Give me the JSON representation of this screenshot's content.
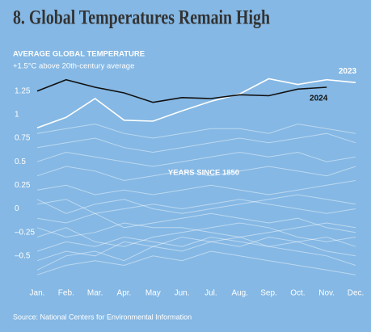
{
  "chart_data": {
    "type": "line",
    "title": "8. Global Temperatures Remain High",
    "subtitle": "AVERAGE GLOBAL TEMPERATURE",
    "y_label": "+1.5°C above 20th-century average",
    "annotation": "YEARS SINCE 1850",
    "source": "Source: National Centers for Environmental Information",
    "categories": [
      "Jan.",
      "Feb.",
      "Mar.",
      "Apr.",
      "May",
      "Jun.",
      "Jul.",
      "Aug.",
      "Sep.",
      "Oct.",
      "Nov.",
      "Dec."
    ],
    "ylim": [
      -0.75,
      1.5
    ],
    "yticks": [
      1.25,
      1,
      0.75,
      0.5,
      0.25,
      0,
      {
        "value": -0.25,
        "label": "–0.25"
      },
      {
        "value": -0.5,
        "label": "–0.5"
      }
    ],
    "grid": false,
    "series": [
      {
        "color": "#ffffff",
        "values": [
          -0.3,
          -0.2,
          -0.35,
          -0.4,
          -0.3,
          -0.25,
          -0.2,
          -0.15,
          -0.2,
          -0.3,
          -0.35,
          -0.3
        ]
      },
      {
        "color": "#ffffff",
        "values": [
          -0.55,
          -0.45,
          -0.5,
          -0.35,
          -0.4,
          -0.3,
          -0.35,
          -0.4,
          -0.3,
          -0.35,
          -0.45,
          -0.5
        ]
      },
      {
        "color": "#ffffff",
        "values": [
          -0.1,
          -0.15,
          -0.05,
          -0.2,
          -0.15,
          -0.1,
          -0.05,
          -0.1,
          -0.15,
          -0.1,
          -0.2,
          -0.25
        ]
      },
      {
        "color": "#ffffff",
        "values": [
          -0.65,
          -0.5,
          -0.45,
          -0.55,
          -0.4,
          -0.45,
          -0.35,
          -0.3,
          -0.4,
          -0.45,
          -0.5,
          -0.6
        ]
      },
      {
        "color": "#ffffff",
        "values": [
          0.05,
          0.1,
          -0.05,
          0.0,
          0.05,
          0.0,
          0.05,
          0.1,
          0.05,
          0.0,
          -0.05,
          0.0
        ]
      },
      {
        "color": "#ffffff",
        "values": [
          -0.2,
          -0.3,
          -0.25,
          -0.15,
          -0.2,
          -0.2,
          -0.25,
          -0.3,
          -0.25,
          -0.2,
          -0.15,
          -0.2
        ]
      },
      {
        "color": "#ffffff",
        "values": [
          0.2,
          0.25,
          0.15,
          0.2,
          0.15,
          0.2,
          0.25,
          0.2,
          0.15,
          0.2,
          0.25,
          0.3
        ]
      },
      {
        "color": "#ffffff",
        "values": [
          0.35,
          0.45,
          0.4,
          0.3,
          0.35,
          0.4,
          0.35,
          0.4,
          0.45,
          0.4,
          0.35,
          0.45
        ]
      },
      {
        "color": "#ffffff",
        "values": [
          0.5,
          0.6,
          0.55,
          0.5,
          0.45,
          0.5,
          0.55,
          0.6,
          0.55,
          0.6,
          0.5,
          0.55
        ]
      },
      {
        "color": "#ffffff",
        "values": [
          0.65,
          0.7,
          0.75,
          0.65,
          0.6,
          0.65,
          0.7,
          0.75,
          0.7,
          0.75,
          0.8,
          0.7
        ]
      },
      {
        "color": "#ffffff",
        "values": [
          0.8,
          0.85,
          0.9,
          0.8,
          0.75,
          0.8,
          0.85,
          0.85,
          0.8,
          0.9,
          0.85,
          0.8
        ]
      },
      {
        "color": "#ffffff",
        "values": [
          -0.45,
          -0.35,
          -0.4,
          -0.3,
          -0.35,
          -0.4,
          -0.3,
          -0.35,
          -0.4,
          -0.35,
          -0.3,
          -0.4
        ]
      },
      {
        "color": "#ffffff",
        "values": [
          0.1,
          -0.05,
          0.05,
          0.1,
          0.0,
          -0.05,
          0.0,
          0.05,
          0.1,
          0.15,
          0.1,
          0.05
        ]
      },
      {
        "color": "#ffffff",
        "values": [
          -0.7,
          -0.6,
          -0.55,
          -0.6,
          -0.5,
          -0.55,
          -0.45,
          -0.5,
          -0.55,
          -0.6,
          -0.65,
          -0.7
        ]
      },
      {
        "name": "2023",
        "color": "#ffffff",
        "values": [
          0.86,
          0.97,
          1.17,
          0.94,
          0.93,
          1.04,
          1.14,
          1.22,
          1.38,
          1.32,
          1.37,
          1.34
        ]
      },
      {
        "name": "2024",
        "color": "#111111",
        "values": [
          1.25,
          1.37,
          1.29,
          1.23,
          1.13,
          1.18,
          1.17,
          1.21,
          1.2,
          1.27,
          1.29,
          null
        ]
      }
    ]
  }
}
